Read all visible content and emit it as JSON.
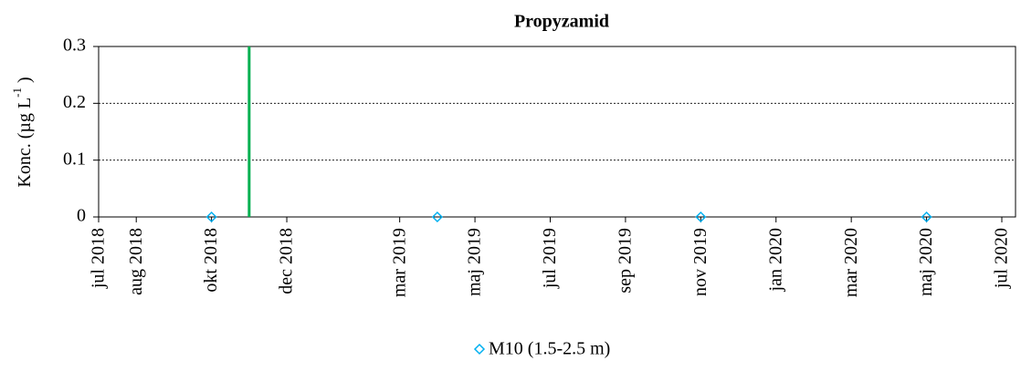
{
  "chart_data": {
    "type": "scatter",
    "title": "Propyzamid",
    "y_label": [
      "Konc. (µg L",
      "-1",
      " )"
    ],
    "xlim": [
      "2018-07",
      "2020-07"
    ],
    "xticks": [
      {
        "value": "2018-07",
        "label": "jul 2018"
      },
      {
        "value": "2018-08",
        "label": "aug 2018"
      },
      {
        "value": "2018-10",
        "label": "okt 2018"
      },
      {
        "value": "2018-12",
        "label": "dec 2018"
      },
      {
        "value": "2019-03",
        "label": "mar 2019"
      },
      {
        "value": "2019-05",
        "label": "maj 2019"
      },
      {
        "value": "2019-07",
        "label": "jul 2019"
      },
      {
        "value": "2019-09",
        "label": "sep 2019"
      },
      {
        "value": "2019-11",
        "label": "nov 2019"
      },
      {
        "value": "2020-01",
        "label": "jan 2020"
      },
      {
        "value": "2020-03",
        "label": "mar 2020"
      },
      {
        "value": "2020-05",
        "label": "maj 2020"
      },
      {
        "value": "2020-07",
        "label": "jul 2020"
      }
    ],
    "ylim": [
      0,
      0.3
    ],
    "yticks": [
      0,
      0.1,
      0.2,
      0.3
    ],
    "grid": true,
    "series": [
      {
        "name": "M10 (1.5-2.5 m)",
        "color": "#00b0f0",
        "x": [
          "2018-10",
          "2019-04",
          "2019-11",
          "2020-05"
        ],
        "values": [
          0,
          0,
          0,
          0
        ]
      }
    ],
    "vertical_lines": [
      {
        "x": "2018-11",
        "color": "#00b050"
      }
    ],
    "legend": "bottom"
  }
}
